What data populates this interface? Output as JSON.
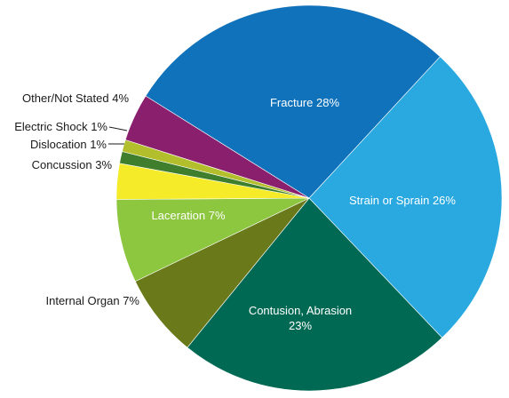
{
  "chart_data": {
    "type": "pie",
    "title": "",
    "start_angle_deg": 90,
    "direction": "clockwise",
    "slices": [
      {
        "label": "Fracture 28%",
        "value": 28,
        "color": "#1072BA"
      },
      {
        "label": "Strain or Sprain 26%",
        "value": 26,
        "color": "#29A9E0"
      },
      {
        "label": "Contusion, Abrasion 23%",
        "value": 23,
        "color": "#006953"
      },
      {
        "label": "Internal Organ 7%",
        "value": 7,
        "color": "#6A7A1A"
      },
      {
        "label": "Laceration 7%",
        "value": 7,
        "color": "#8DC63F"
      },
      {
        "label": "Concussion 3%",
        "value": 3,
        "color": "#F5EB28"
      },
      {
        "label": "Dislocation 1%",
        "value": 1,
        "color": "#3E7E2C"
      },
      {
        "label": "Electric Shock 1%",
        "value": 1,
        "color": "#B2BE2B"
      },
      {
        "label": "Other/Not Stated 4%",
        "value": 4,
        "color": "#8A1F6E"
      }
    ]
  }
}
